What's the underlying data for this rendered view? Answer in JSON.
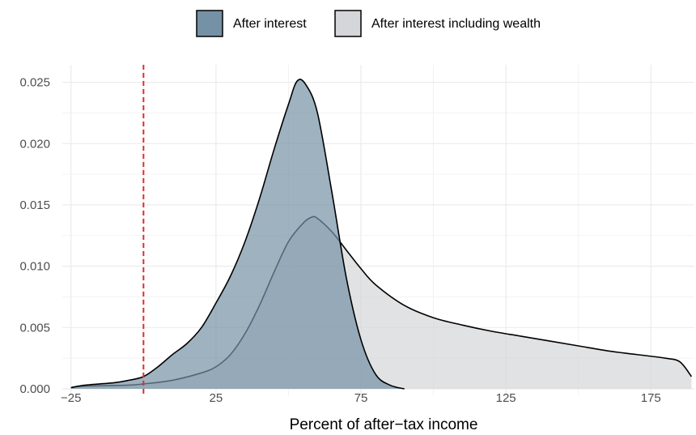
{
  "chart_data": {
    "type": "area",
    "title": "",
    "xlabel": "Percent of after−tax income",
    "ylabel": "",
    "xlim": [
      -28,
      190
    ],
    "ylim": [
      0,
      0.0255
    ],
    "x_ticks": [
      -25,
      25,
      75,
      125,
      175
    ],
    "x_tick_labels": [
      "−25",
      "25",
      "75",
      "125",
      "175"
    ],
    "y_ticks": [
      0,
      0.005,
      0.01,
      0.015,
      0.02,
      0.025
    ],
    "y_tick_labels": [
      "0.000",
      "0.005",
      "0.010",
      "0.015",
      "0.020",
      "0.025"
    ],
    "grid": true,
    "legend_position": "top",
    "reference_line": {
      "x": 0,
      "color": "#e32b2b",
      "style": "dashed"
    },
    "series": [
      {
        "name": "After interest including wealth",
        "fill": "#d4d6d9",
        "points": [
          [
            -25,
            0.0001
          ],
          [
            -22,
            0.0002
          ],
          [
            -15,
            0.00025
          ],
          [
            -5,
            0.0003
          ],
          [
            0,
            0.0004
          ],
          [
            10,
            0.0007
          ],
          [
            20,
            0.0013
          ],
          [
            25,
            0.0018
          ],
          [
            30,
            0.0028
          ],
          [
            35,
            0.0045
          ],
          [
            40,
            0.0068
          ],
          [
            45,
            0.0095
          ],
          [
            50,
            0.012
          ],
          [
            55,
            0.0135
          ],
          [
            58,
            0.014
          ],
          [
            60,
            0.0139
          ],
          [
            65,
            0.0128
          ],
          [
            70,
            0.0113
          ],
          [
            75,
            0.0098
          ],
          [
            80,
            0.0085
          ],
          [
            90,
            0.0068
          ],
          [
            100,
            0.0058
          ],
          [
            110,
            0.0052
          ],
          [
            120,
            0.0047
          ],
          [
            130,
            0.0043
          ],
          [
            140,
            0.0039
          ],
          [
            150,
            0.0035
          ],
          [
            160,
            0.0031
          ],
          [
            170,
            0.0028
          ],
          [
            180,
            0.0025
          ],
          [
            185,
            0.0022
          ],
          [
            189,
            0.001
          ]
        ]
      },
      {
        "name": "After interest",
        "fill": "#7591a5",
        "points": [
          [
            -25,
            0.0001
          ],
          [
            -20,
            0.0003
          ],
          [
            -10,
            0.0005
          ],
          [
            -5,
            0.0007
          ],
          [
            0,
            0.001
          ],
          [
            5,
            0.0018
          ],
          [
            10,
            0.0028
          ],
          [
            15,
            0.0037
          ],
          [
            20,
            0.005
          ],
          [
            25,
            0.007
          ],
          [
            30,
            0.0092
          ],
          [
            35,
            0.012
          ],
          [
            40,
            0.0155
          ],
          [
            45,
            0.0195
          ],
          [
            50,
            0.0232
          ],
          [
            53,
            0.0251
          ],
          [
            56,
            0.0248
          ],
          [
            60,
            0.0225
          ],
          [
            65,
            0.016
          ],
          [
            70,
            0.009
          ],
          [
            75,
            0.004
          ],
          [
            80,
            0.0012
          ],
          [
            85,
            0.0003
          ],
          [
            90,
            0.0
          ]
        ]
      }
    ]
  }
}
